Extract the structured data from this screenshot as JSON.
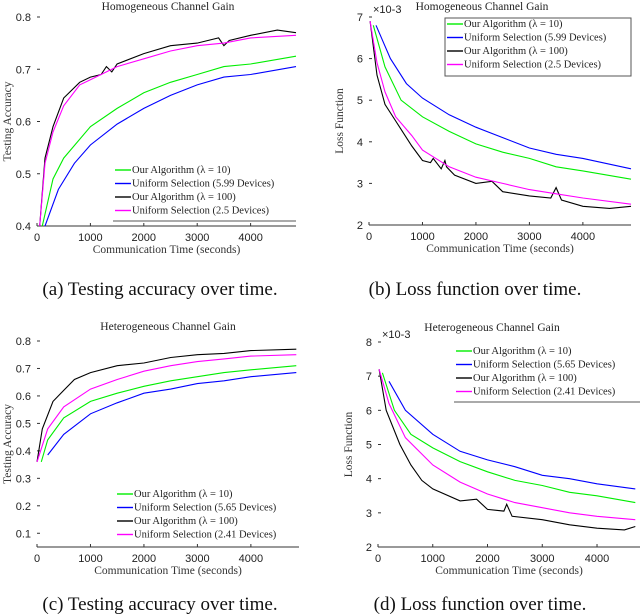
{
  "colors": {
    "green": "#00ee00",
    "blue": "#0000ff",
    "black": "#000000",
    "magenta": "#ff00ff"
  },
  "chart_data": [
    {
      "type": "line",
      "panel": "a",
      "title": "Homogeneous Channel Gain",
      "caption": "(a) Testing accuracy over time.",
      "xlabel": "Communication Time (seconds)",
      "ylabel": "Testing Accuracy",
      "xlim": [
        0,
        4850
      ],
      "ylim": [
        0.4,
        0.8
      ],
      "xticks": [
        "0",
        "1000",
        "2000",
        "3000",
        "4000"
      ],
      "yticks": [
        "0.4",
        "0.5",
        "0.6",
        "0.7",
        "0.8"
      ],
      "exponent": "",
      "legend_position": "bottom-right",
      "series": [
        {
          "name": "Our Algorithm (λ = 10)",
          "color": "green",
          "x": [
            100,
            300,
            500,
            1000,
            1500,
            2000,
            2500,
            3000,
            3500,
            4000,
            4850
          ],
          "y": [
            0.4,
            0.49,
            0.53,
            0.59,
            0.625,
            0.655,
            0.675,
            0.69,
            0.705,
            0.71,
            0.725
          ]
        },
        {
          "name": "Uniform Selection (5.99 Devices)",
          "color": "blue",
          "x": [
            150,
            400,
            700,
            1000,
            1500,
            2000,
            2500,
            3000,
            3500,
            4000,
            4850
          ],
          "y": [
            0.4,
            0.47,
            0.52,
            0.555,
            0.595,
            0.625,
            0.65,
            0.67,
            0.685,
            0.69,
            0.705
          ]
        },
        {
          "name": "Our Algorithm (λ = 100)",
          "color": "black",
          "x": [
            50,
            150,
            300,
            500,
            800,
            1000,
            1200,
            1300,
            1400,
            1500,
            2000,
            2500,
            3000,
            3400,
            3500,
            3600,
            4000,
            4500,
            4850
          ],
          "y": [
            0.4,
            0.53,
            0.59,
            0.645,
            0.675,
            0.685,
            0.69,
            0.705,
            0.695,
            0.71,
            0.73,
            0.745,
            0.75,
            0.76,
            0.745,
            0.755,
            0.765,
            0.775,
            0.77
          ]
        },
        {
          "name": "Uniform Selection (2.5 Devices)",
          "color": "magenta",
          "x": [
            50,
            150,
            300,
            500,
            800,
            1000,
            1500,
            2000,
            2500,
            3000,
            3500,
            4000,
            4850
          ],
          "y": [
            0.4,
            0.52,
            0.58,
            0.63,
            0.67,
            0.68,
            0.705,
            0.72,
            0.735,
            0.745,
            0.75,
            0.76,
            0.765
          ]
        }
      ]
    },
    {
      "type": "line",
      "panel": "b",
      "title": "Homogeneous Channel Gain",
      "caption": "(b) Loss function over time.",
      "xlabel": "Communication Time (seconds)",
      "ylabel": "Loss Function",
      "xlim": [
        0,
        4900
      ],
      "ylim": [
        2,
        7
      ],
      "xticks": [
        "0",
        "1000",
        "2000",
        "3000",
        "4000"
      ],
      "yticks": [
        "2",
        "3",
        "4",
        "5",
        "6",
        "7"
      ],
      "exponent": "×10-3",
      "legend_position": "top-right",
      "series": [
        {
          "name": "Our Algorithm (λ = 10)",
          "color": "green",
          "x": [
            80,
            300,
            600,
            1000,
            1500,
            2000,
            2500,
            3000,
            3500,
            4000,
            4900
          ],
          "y": [
            6.8,
            5.8,
            5.0,
            4.6,
            4.25,
            3.95,
            3.75,
            3.6,
            3.4,
            3.3,
            3.1
          ]
        },
        {
          "name": "Uniform Selection (5.99 Devices)",
          "color": "blue",
          "x": [
            130,
            400,
            700,
            1000,
            1500,
            2000,
            2500,
            3000,
            3500,
            4000,
            4900
          ],
          "y": [
            6.8,
            6.0,
            5.4,
            5.05,
            4.65,
            4.35,
            4.1,
            3.85,
            3.7,
            3.6,
            3.35
          ]
        },
        {
          "name": "Our Algorithm (λ = 100)",
          "color": "black",
          "x": [
            20,
            150,
            300,
            500,
            800,
            1000,
            1150,
            1200,
            1350,
            1420,
            1450,
            1600,
            2000,
            2300,
            2500,
            3000,
            3400,
            3500,
            3600,
            4000,
            4500,
            4900
          ],
          "y": [
            6.9,
            5.6,
            4.9,
            4.5,
            3.9,
            3.55,
            3.5,
            3.6,
            3.35,
            3.55,
            3.4,
            3.2,
            3.0,
            3.05,
            2.8,
            2.7,
            2.65,
            2.9,
            2.6,
            2.45,
            2.4,
            2.45
          ]
        },
        {
          "name": "Uniform Selection (2.5 Devices)",
          "color": "magenta",
          "x": [
            20,
            150,
            300,
            500,
            800,
            1000,
            1500,
            2000,
            2500,
            3000,
            3500,
            4000,
            4900
          ],
          "y": [
            6.9,
            5.9,
            5.2,
            4.6,
            4.15,
            3.8,
            3.4,
            3.15,
            3.0,
            2.85,
            2.75,
            2.65,
            2.5
          ]
        }
      ]
    },
    {
      "type": "line",
      "panel": "c",
      "title": "Heterogeneous Channel Gain",
      "caption": "(c) Testing accuracy over time.",
      "xlabel": "Communication Time (seconds)",
      "ylabel": "Testing Accuracy",
      "xlim": [
        0,
        4900
      ],
      "ylim": [
        0.05,
        0.8
      ],
      "xticks": [
        "0",
        "1000",
        "2000",
        "3000",
        "4000"
      ],
      "yticks": [
        "0.1",
        "0.2",
        "0.3",
        "0.4",
        "0.5",
        "0.6",
        "0.7",
        "0.8"
      ],
      "exponent": "",
      "legend_position": "bottom-right",
      "series": [
        {
          "name": "Our Algorithm (λ = 10)",
          "color": "green",
          "x": [
            80,
            200,
            500,
            1000,
            1500,
            2000,
            2500,
            3000,
            3500,
            4000,
            4850
          ],
          "y": [
            0.36,
            0.44,
            0.52,
            0.58,
            0.61,
            0.635,
            0.655,
            0.67,
            0.685,
            0.695,
            0.71
          ]
        },
        {
          "name": "Uniform Selection (5.65 Devices)",
          "color": "blue",
          "x": [
            200,
            500,
            1000,
            1500,
            2000,
            2500,
            3000,
            3500,
            4000,
            4850
          ],
          "y": [
            0.385,
            0.46,
            0.535,
            0.575,
            0.61,
            0.625,
            0.645,
            0.655,
            0.67,
            0.685
          ]
        },
        {
          "name": "Our Algorithm (λ = 100)",
          "color": "black",
          "x": [
            0,
            100,
            300,
            500,
            700,
            1000,
            1500,
            2000,
            2500,
            3000,
            3500,
            4000,
            4850
          ],
          "y": [
            0.36,
            0.48,
            0.58,
            0.62,
            0.66,
            0.685,
            0.71,
            0.72,
            0.74,
            0.75,
            0.755,
            0.765,
            0.77
          ]
        },
        {
          "name": "Uniform Selection (2.41 Devices)",
          "color": "magenta",
          "x": [
            0,
            200,
            500,
            1000,
            1500,
            2000,
            2500,
            3000,
            3500,
            4000,
            4850
          ],
          "y": [
            0.36,
            0.48,
            0.56,
            0.625,
            0.66,
            0.69,
            0.71,
            0.725,
            0.735,
            0.745,
            0.75
          ]
        }
      ]
    },
    {
      "type": "line",
      "panel": "d",
      "title": "Heterogeneous Channel Gain",
      "caption": "(d) Loss function over time.",
      "xlabel": "Communication Time (seconds)",
      "ylabel": "Loss Function",
      "xlim": [
        0,
        4785
      ],
      "ylim": [
        2,
        8
      ],
      "xticks": [
        "0",
        "1000",
        "2000",
        "3000",
        "4000"
      ],
      "yticks": [
        "2",
        "3",
        "4",
        "5",
        "6",
        "7",
        "8"
      ],
      "exponent": "×10-3",
      "legend_position": "top-right",
      "series": [
        {
          "name": "Our Algorithm (λ = 10)",
          "color": "green",
          "x": [
            80,
            300,
            600,
            1000,
            1500,
            2000,
            2500,
            3000,
            3500,
            4000,
            4700
          ],
          "y": [
            7.1,
            6.0,
            5.3,
            4.9,
            4.5,
            4.2,
            3.95,
            3.8,
            3.6,
            3.5,
            3.3
          ]
        },
        {
          "name": "Uniform Selection (5.65 Devices)",
          "color": "blue",
          "x": [
            200,
            500,
            1000,
            1500,
            2000,
            2500,
            3000,
            3500,
            4000,
            4700
          ],
          "y": [
            6.85,
            6.0,
            5.3,
            4.8,
            4.55,
            4.35,
            4.1,
            4.0,
            3.85,
            3.7
          ]
        },
        {
          "name": "Our Algorithm (λ = 100)",
          "color": "black",
          "x": [
            20,
            150,
            400,
            600,
            800,
            1000,
            1500,
            1800,
            2000,
            2300,
            2350,
            2450,
            3000,
            3500,
            4000,
            4500,
            4700
          ],
          "y": [
            7.2,
            6.0,
            5.0,
            4.4,
            3.95,
            3.7,
            3.35,
            3.4,
            3.1,
            3.05,
            3.25,
            2.9,
            2.8,
            2.65,
            2.55,
            2.5,
            2.6
          ]
        },
        {
          "name": "Uniform Selection (2.41 Devices)",
          "color": "magenta",
          "x": [
            20,
            200,
            500,
            1000,
            1500,
            2000,
            2500,
            3000,
            3500,
            4000,
            4700
          ],
          "y": [
            7.2,
            6.2,
            5.2,
            4.4,
            3.9,
            3.55,
            3.3,
            3.15,
            3.0,
            2.9,
            2.8
          ]
        }
      ]
    }
  ]
}
